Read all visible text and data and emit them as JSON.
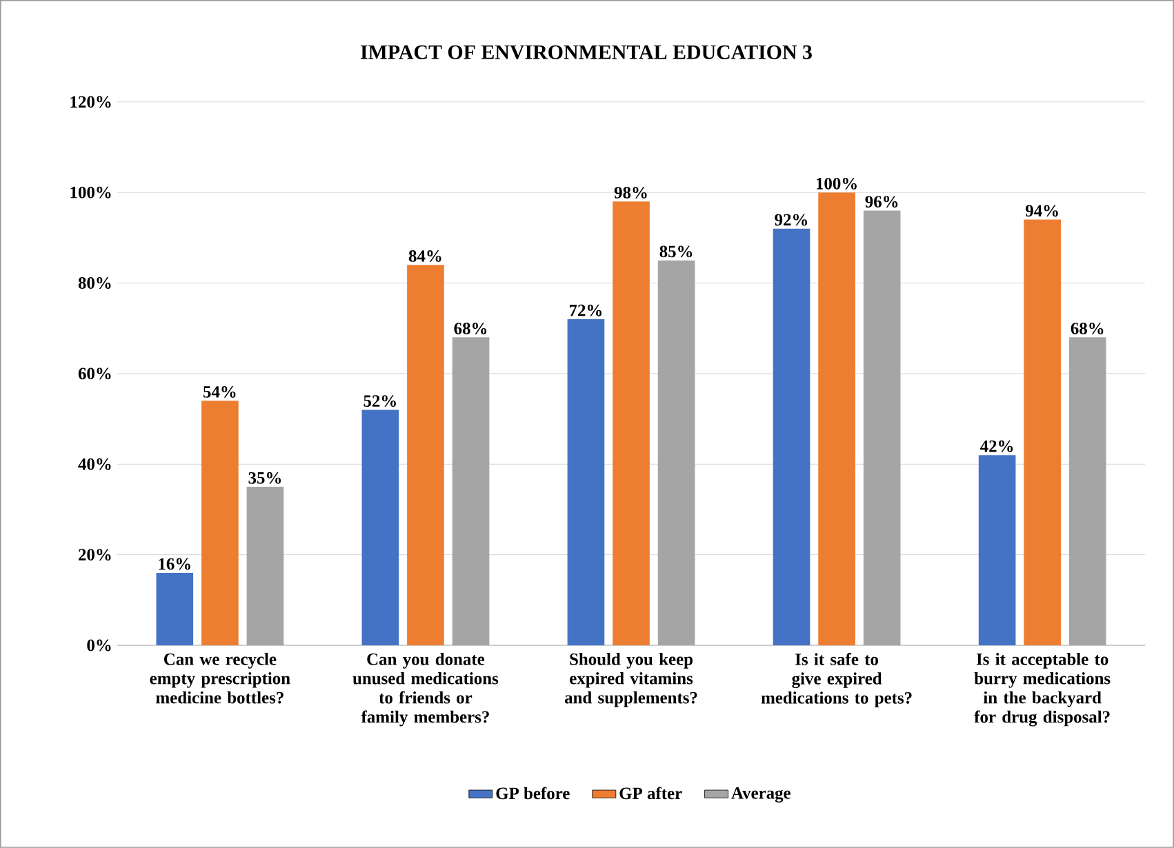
{
  "chart_data": {
    "type": "bar",
    "title": "IMPACT OF ENVIRONMENTAL EDUCATION 3",
    "categories": [
      "Can we recycle empty prescription medicine bottles?",
      "Can you donate unused medications to friends or family members?",
      "Should you keep expired vitamins and supplements?",
      "Is it safe to give expired medications to pets?",
      "Is it acceptable to burry medications in the backyard for drug disposal?"
    ],
    "series": [
      {
        "name": "GP before",
        "color": "#4472c4",
        "values": [
          16,
          52,
          72,
          92,
          42
        ],
        "value_labels": [
          "16%",
          "52%",
          "72%",
          "92%",
          "42%"
        ]
      },
      {
        "name": "GP after",
        "color": "#ed7d31",
        "values": [
          54,
          84,
          98,
          100,
          94
        ],
        "value_labels": [
          "54%",
          "84%",
          "98%",
          "100%",
          "94%"
        ]
      },
      {
        "name": "Average",
        "color": "#a5a5a5",
        "values": [
          35,
          68,
          85,
          96,
          68
        ],
        "value_labels": [
          "35%",
          "68%",
          "85%",
          "96%",
          "68%"
        ]
      }
    ],
    "ylim": [
      0,
      120
    ],
    "yticks": [
      {
        "value": 0,
        "label": "0%"
      },
      {
        "value": 20,
        "label": "20%"
      },
      {
        "value": 40,
        "label": "40%"
      },
      {
        "value": 60,
        "label": "60%"
      },
      {
        "value": 80,
        "label": "80%"
      },
      {
        "value": 100,
        "label": "100%"
      },
      {
        "value": 120,
        "label": "120%"
      }
    ],
    "grid": "y",
    "legend": "bottom"
  }
}
